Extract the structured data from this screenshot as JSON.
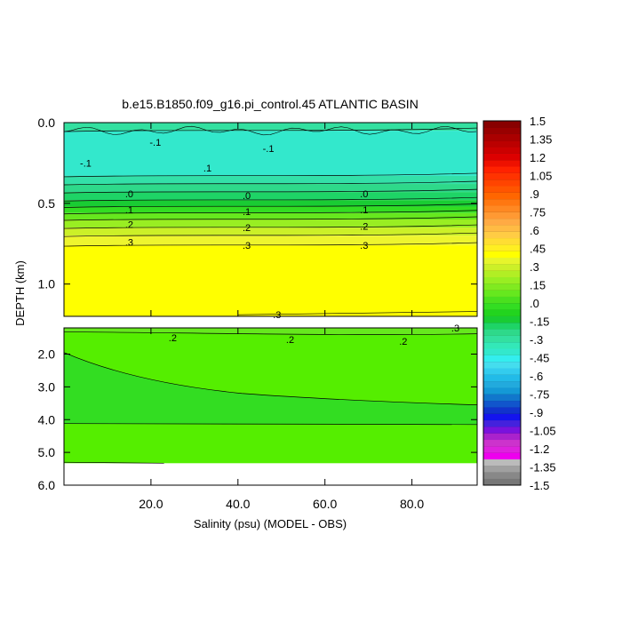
{
  "chart_data": {
    "type": "heatmap",
    "title": "b.e15.B1850.f09_g16.pi_control.45 ATLANTIC BASIN",
    "xlabel": "Salinity (psu) (MODEL - OBS)",
    "ylabel": "DEPTH (km)",
    "xlim": [
      0,
      95
    ],
    "x_ticks": [
      {
        "value": 20,
        "label": "20.0"
      },
      {
        "value": 40,
        "label": "40.0"
      },
      {
        "value": 60,
        "label": "60.0"
      },
      {
        "value": 80,
        "label": "80.0"
      }
    ],
    "upper_panel": {
      "ylim": [
        0,
        1.2
      ],
      "y_ticks": [
        {
          "value": 0.0,
          "label": "0.0"
        },
        {
          "value": 0.5,
          "label": "0.5"
        },
        {
          "value": 1.0,
          "label": "1.0"
        }
      ],
      "bands": [
        {
          "from": 0.0,
          "to": 0.05,
          "color": "#33e0a0"
        },
        {
          "from": 0.05,
          "to": 0.33,
          "color": "#33e8cc"
        },
        {
          "from": 0.33,
          "to": 0.38,
          "color": "#33e0a8"
        },
        {
          "from": 0.38,
          "to": 0.43,
          "color": "#2ed98a"
        },
        {
          "from": 0.43,
          "to": 0.48,
          "color": "#1ed466"
        },
        {
          "from": 0.48,
          "to": 0.52,
          "color": "#19cc33"
        },
        {
          "from": 0.52,
          "to": 0.56,
          "color": "#33dd22"
        },
        {
          "from": 0.56,
          "to": 0.6,
          "color": "#66e81e"
        },
        {
          "from": 0.6,
          "to": 0.65,
          "color": "#99ee22"
        },
        {
          "from": 0.65,
          "to": 0.7,
          "color": "#ccf028"
        },
        {
          "from": 0.7,
          "to": 0.76,
          "color": "#eef52e"
        },
        {
          "from": 0.76,
          "to": 1.2,
          "color": "#ffff00"
        }
      ],
      "contour_labels": [
        {
          "x": 21,
          "y": 0.12,
          "text": "-.1"
        },
        {
          "x": 5,
          "y": 0.25,
          "text": "-.1"
        },
        {
          "x": 33,
          "y": 0.28,
          "text": ".1"
        },
        {
          "x": 47,
          "y": 0.16,
          "text": "-.1"
        },
        {
          "x": 15,
          "y": 0.44,
          "text": ".0"
        },
        {
          "x": 42,
          "y": 0.45,
          "text": ".0"
        },
        {
          "x": 69,
          "y": 0.44,
          "text": ".0"
        },
        {
          "x": 15,
          "y": 0.54,
          "text": ".1"
        },
        {
          "x": 42,
          "y": 0.55,
          "text": ".1"
        },
        {
          "x": 69,
          "y": 0.54,
          "text": ".1"
        },
        {
          "x": 15,
          "y": 0.63,
          "text": ".2"
        },
        {
          "x": 42,
          "y": 0.65,
          "text": ".2"
        },
        {
          "x": 69,
          "y": 0.64,
          "text": ".2"
        },
        {
          "x": 15,
          "y": 0.74,
          "text": ".3"
        },
        {
          "x": 42,
          "y": 0.76,
          "text": ".3"
        },
        {
          "x": 69,
          "y": 0.76,
          "text": ".3"
        },
        {
          "x": 49,
          "y": 1.19,
          "text": ".3"
        }
      ]
    },
    "lower_panel": {
      "ylim": [
        1.2,
        6.0
      ],
      "y_ticks": [
        {
          "value": 2.0,
          "label": "2.0"
        },
        {
          "value": 3.0,
          "label": "3.0"
        },
        {
          "value": 4.0,
          "label": "4.0"
        },
        {
          "value": 5.0,
          "label": "5.0"
        },
        {
          "value": 6.0,
          "label": "6.0"
        }
      ],
      "contour_labels": [
        {
          "x": 25,
          "y": 1.5,
          "text": ".2"
        },
        {
          "x": 52,
          "y": 1.55,
          "text": ".2"
        },
        {
          "x": 78,
          "y": 1.6,
          "text": ".2"
        },
        {
          "x": 90,
          "y": 1.2,
          "text": ".3"
        }
      ]
    },
    "colorbar": {
      "labels": [
        "1.5",
        "1.35",
        "1.2",
        "1.05",
        ".9",
        ".75",
        ".6",
        ".45",
        ".3",
        ".15",
        ".0",
        "-.15",
        "-.3",
        "-.45",
        "-.6",
        "-.75",
        "-.9",
        "-1.05",
        "-1.2",
        "-1.35",
        "-1.5"
      ],
      "colors": [
        "#777777",
        "#888888",
        "#a0a0a0",
        "#bbbbbb",
        "#ee00ee",
        "#dd22dd",
        "#cc33cc",
        "#aa22cc",
        "#7a12dd",
        "#4422dd",
        "#1414ee",
        "#1133cc",
        "#1155cc",
        "#1177cc",
        "#1499d6",
        "#22aadd",
        "#22bbe8",
        "#33ccee",
        "#44ddee",
        "#33eeee",
        "#33e8cc",
        "#33e8b8",
        "#33e0a0",
        "#2ed98a",
        "#1ed466",
        "#19cc33",
        "#22d41e",
        "#33dd22",
        "#4ae01e",
        "#66e81e",
        "#80ea20",
        "#99ee22",
        "#b2ee24",
        "#ccf028",
        "#e6f52c",
        "#ffff00",
        "#ffee22",
        "#ffdd33",
        "#ffcc44",
        "#ffbb44",
        "#ffaa44",
        "#ff9933",
        "#ff8822",
        "#ff7711",
        "#ff6600",
        "#ff5500",
        "#ff4400",
        "#ff3300",
        "#ff2200",
        "#ee1100",
        "#dd0000",
        "#cc0000",
        "#bb0000",
        "#aa0000",
        "#990000",
        "#880000"
      ]
    }
  }
}
